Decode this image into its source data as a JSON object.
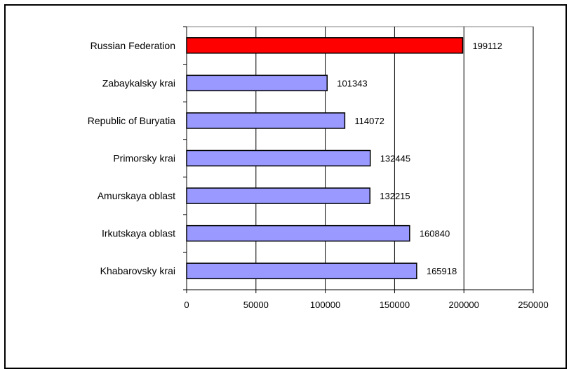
{
  "chart_data": {
    "type": "bar",
    "orientation": "horizontal",
    "categories": [
      "Russian Federation",
      "Zabaykalsky krai",
      "Republic of Buryatia",
      "Primorsky krai",
      "Amurskaya oblast",
      "Irkutskaya oblast",
      "Khabarovsky krai"
    ],
    "values": [
      199112,
      101343,
      114072,
      132445,
      132215,
      160840,
      165918
    ],
    "data_labels": [
      "199112",
      "101343",
      "114072",
      "132445",
      "132215",
      "160840",
      "165918"
    ],
    "bar_colors": [
      "#ff0000",
      "#9999ff",
      "#9999ff",
      "#9999ff",
      "#9999ff",
      "#9999ff",
      "#9999ff"
    ],
    "xlim": [
      0,
      250000
    ],
    "xticks": [
      0,
      50000,
      100000,
      150000,
      200000,
      250000
    ],
    "xtick_labels": [
      "0",
      "50000",
      "100000",
      "150000",
      "200000",
      "250000"
    ],
    "grid": true,
    "title": "",
    "xlabel": "",
    "ylabel": ""
  }
}
